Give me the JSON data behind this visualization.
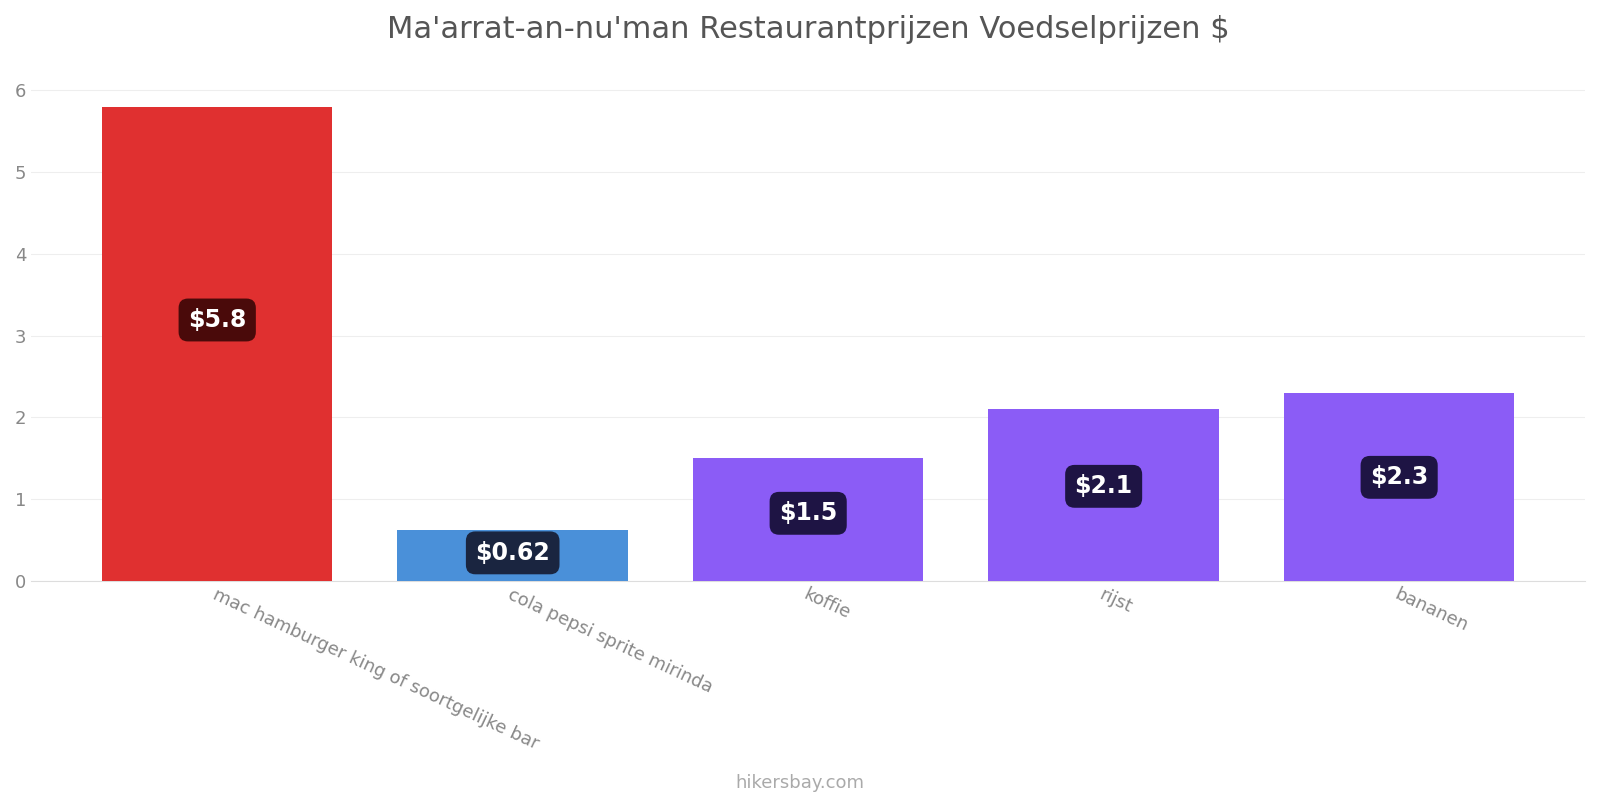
{
  "title": "Ma'arrat-an-nu'man Restaurantprijzen Voedselprijzen $",
  "categories": [
    "mac hamburger king of soortgelijke bar",
    "cola pepsi sprite mirinda",
    "koffie",
    "rijst",
    "bananen"
  ],
  "values": [
    5.8,
    0.62,
    1.5,
    2.1,
    2.3
  ],
  "bar_colors": [
    "#e03030",
    "#4a90d9",
    "#8b5cf6",
    "#8b5cf6",
    "#8b5cf6"
  ],
  "label_texts": [
    "$5.8",
    "$0.62",
    "$1.5",
    "$2.1",
    "$2.3"
  ],
  "label_bg_colors": [
    "#4a0a0a",
    "#1a2540",
    "#1e1444",
    "#1e1444",
    "#1e1444"
  ],
  "ylim": [
    0,
    6.3
  ],
  "yticks": [
    0,
    1,
    2,
    3,
    4,
    5,
    6
  ],
  "watermark": "hikersbay.com",
  "title_fontsize": 22,
  "label_fontsize": 17,
  "tick_fontsize": 13,
  "background_color": "#ffffff",
  "bar_width": 0.78
}
